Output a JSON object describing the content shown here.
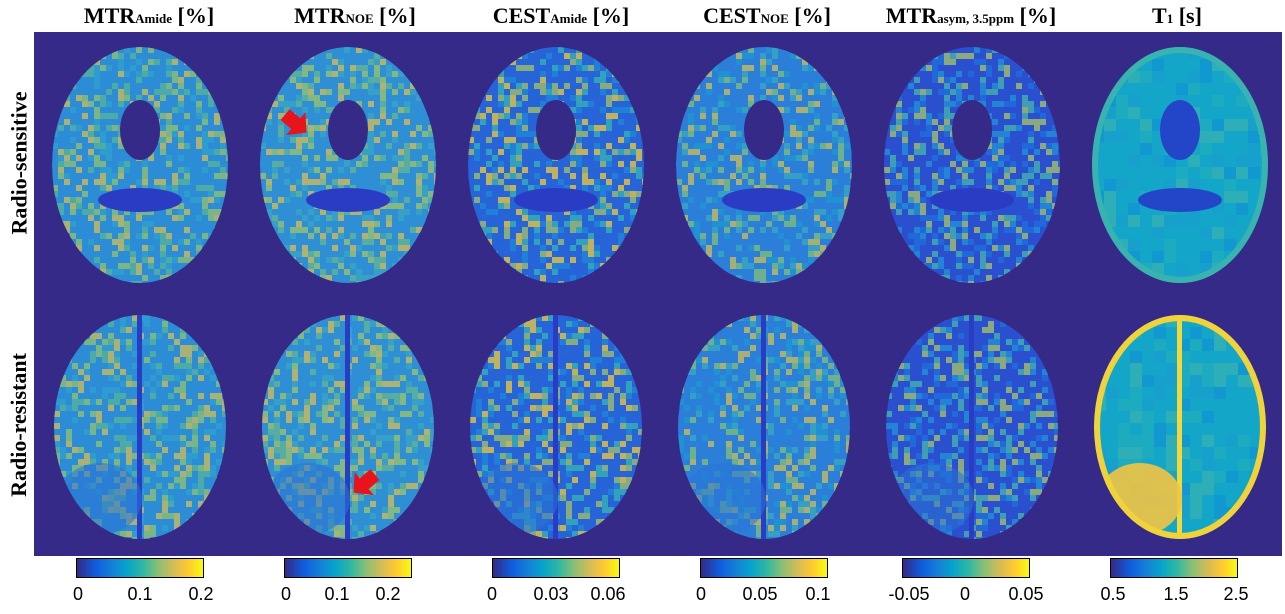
{
  "columns": [
    {
      "main": "MTR",
      "sub": "Amide",
      "unit": " [%]",
      "colorbar_ticks": [
        "0",
        "0.1",
        "0.2"
      ],
      "colorbar_colors": [
        "#352a87",
        "#0fa0cf",
        "#f9fb0e"
      ]
    },
    {
      "main": "MTR",
      "sub": "NOE",
      "unit": " [%]",
      "colorbar_ticks": [
        "0",
        "0.1",
        "0.2"
      ],
      "colorbar_colors": [
        "#352a87",
        "#0fa0cf",
        "#f9fb0e"
      ]
    },
    {
      "main": "CEST",
      "sub": "Amide",
      "unit": " [%]",
      "colorbar_ticks": [
        "0",
        "0.03",
        "0.06"
      ],
      "colorbar_colors": [
        "#352a87",
        "#0fa0cf",
        "#f9fb0e"
      ]
    },
    {
      "main": "CEST",
      "sub": "NOE",
      "unit": " [%]",
      "colorbar_ticks": [
        "0",
        "0.05",
        "0.1"
      ],
      "colorbar_colors": [
        "#352a87",
        "#0fa0cf",
        "#f9fb0e"
      ]
    },
    {
      "main": "MTR",
      "sub": "asym, 3.5ppm",
      "unit": " [%]",
      "colorbar_ticks": [
        "-0.05",
        "0",
        "0.05"
      ],
      "colorbar_colors": [
        "#352a87",
        "#0fa0cf",
        "#f9fb0e"
      ]
    },
    {
      "main": "T",
      "sub": "1",
      "unit": " [s]",
      "colorbar_ticks": [
        "0.5",
        "1.5",
        "2.5"
      ],
      "colorbar_colors": [
        "#352a87",
        "#0fa0cf",
        "#f9fb0e"
      ]
    }
  ],
  "rows": [
    {
      "label": "Radio-sensitive"
    },
    {
      "label": "Radio-resistant"
    }
  ],
  "background_color": "#352a87",
  "arrow_color": "#e8141b"
}
